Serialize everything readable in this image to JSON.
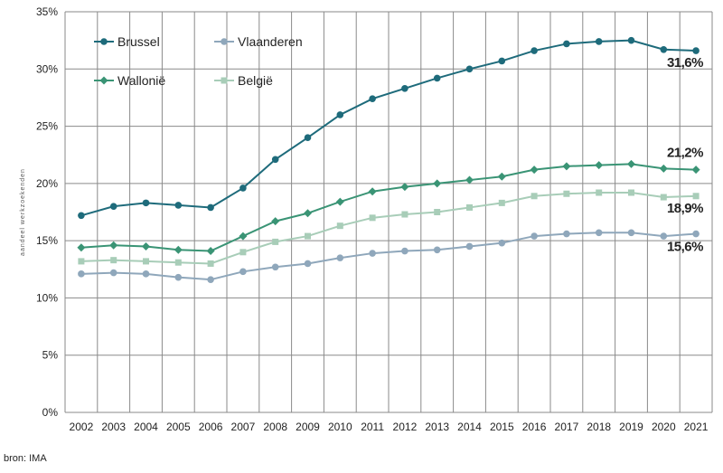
{
  "chart_data": {
    "type": "line",
    "ylabel": "aandeel werkzoekenden",
    "xlabel": "",
    "ylim": [
      0,
      35
    ],
    "yticks": [
      0,
      5,
      10,
      15,
      20,
      25,
      30,
      35
    ],
    "ytick_labels": [
      "0%",
      "5%",
      "10%",
      "15%",
      "20%",
      "25%",
      "30%",
      "35%"
    ],
    "grid": true,
    "legend_position": "top-left",
    "categories": [
      "2002",
      "2003",
      "2004",
      "2005",
      "2006",
      "2007",
      "2008",
      "2009",
      "2010",
      "2011",
      "2012",
      "2013",
      "2014",
      "2015",
      "2016",
      "2017",
      "2018",
      "2019",
      "2020",
      "2021"
    ],
    "series": [
      {
        "name": "Brussel",
        "color": "#1e6b7b",
        "marker": "circle",
        "values": [
          17.2,
          18.0,
          18.3,
          18.1,
          17.9,
          19.6,
          22.1,
          24.0,
          26.0,
          27.4,
          28.3,
          29.2,
          30.0,
          30.7,
          31.6,
          32.2,
          32.4,
          32.5,
          31.7,
          31.6
        ],
        "end_label": "31,6%"
      },
      {
        "name": "Vlaanderen",
        "color": "#8fa7bb",
        "marker": "circle",
        "values": [
          12.1,
          12.2,
          12.1,
          11.8,
          11.6,
          12.3,
          12.7,
          13.0,
          13.5,
          13.9,
          14.1,
          14.2,
          14.5,
          14.8,
          15.4,
          15.6,
          15.7,
          15.7,
          15.4,
          15.6
        ],
        "end_label": "15,6%"
      },
      {
        "name": "Wallonië",
        "color": "#3a9475",
        "marker": "diamond",
        "values": [
          14.4,
          14.6,
          14.5,
          14.2,
          14.1,
          15.4,
          16.7,
          17.4,
          18.4,
          19.3,
          19.7,
          20.0,
          20.3,
          20.6,
          21.2,
          21.5,
          21.6,
          21.7,
          21.3,
          21.2
        ],
        "end_label": "21,2%"
      },
      {
        "name": "België",
        "color": "#a8cdb8",
        "marker": "square",
        "values": [
          13.2,
          13.3,
          13.2,
          13.1,
          13.0,
          14.0,
          14.9,
          15.4,
          16.3,
          17.0,
          17.3,
          17.5,
          17.9,
          18.3,
          18.9,
          19.1,
          19.2,
          19.2,
          18.8,
          18.9
        ],
        "end_label": "18,9%"
      }
    ]
  },
  "footer": {
    "source": "bron: IMA"
  }
}
